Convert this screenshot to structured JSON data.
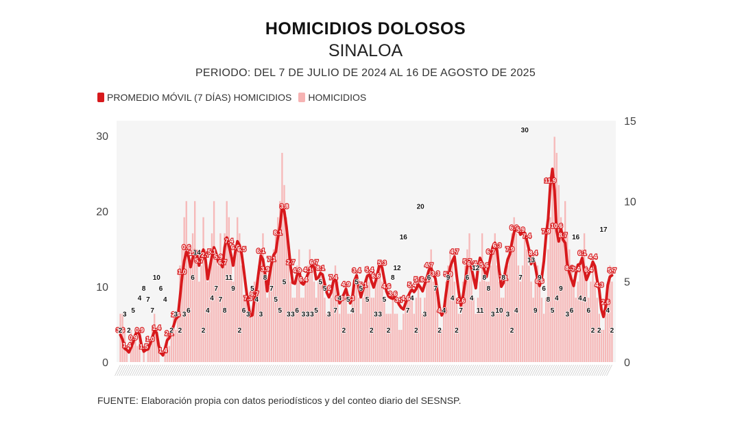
{
  "title": "HOMICIDIOS DOLOSOS",
  "subtitle": "SINALOA",
  "period": "PERIODO: DEL 7 DE JULIO DE 2024 AL 16 DE AGOSTO DE 2025",
  "legend": {
    "moving_avg": "PROMEDIO MÓVIL (7 DÍAS) HOMICIDIOS",
    "daily": "HOMICIDIOS"
  },
  "source": "FUENTE: Elaboración propia con datos periodísticos y del conteo diario del SESNSP.",
  "colors": {
    "moving_avg": "#d7191c",
    "daily": "#f6b3b3",
    "plot_bg": "#f5f5f5"
  },
  "chart_data": {
    "type": "line",
    "x_range": [
      "2024-07-07",
      "2025-08-16"
    ],
    "left_axis": {
      "ticks": [
        0,
        10,
        20,
        30
      ],
      "ylim": [
        0,
        32
      ]
    },
    "right_axis": {
      "ticks": [
        0,
        5,
        10,
        15
      ],
      "ylim": [
        0,
        15
      ]
    },
    "series": [
      {
        "name": "PROMEDIO MÓVIL (7 DÍAS) HOMICIDIOS",
        "axis": "left",
        "values": [
          3.6,
          3.0,
          1.8,
          1.6,
          1.3,
          1.9,
          2.6,
          3.6,
          4.1,
          3.6,
          2.1,
          1.4,
          1.6,
          1.7,
          2.4,
          3.3,
          4.1,
          3.9,
          2.2,
          1.2,
          0.9,
          1.8,
          2.9,
          3.2,
          4.1,
          4.8,
          5.7,
          6.0,
          8.6,
          11.3,
          13.4,
          14.6,
          14.0,
          12.6,
          13.8,
          14.8,
          14.2,
          12.8,
          14.2,
          14.9,
          13.6,
          11.0,
          12.5,
          14.0,
          15.2,
          14.4,
          13.3,
          13.2,
          12.6,
          15.2,
          16.5,
          15.4,
          14.2,
          12.8,
          14.6,
          16.0,
          15.5,
          14.3,
          12.2,
          9.9,
          7.8,
          6.1,
          6.2,
          8.4,
          9.8,
          12.0,
          14.1,
          13.6,
          11.7,
          9.4,
          11.4,
          13.0,
          14.2,
          14.6,
          16.5,
          18.0,
          20.6,
          20.0,
          18.0,
          15.4,
          12.6,
          10.5,
          10.4,
          11.5,
          12.2,
          10.5,
          10.3,
          10.8,
          11.6,
          12.2,
          12.8,
          12.6,
          11.0,
          11.2,
          11.8,
          11.6,
          10.4,
          9.2,
          8.6,
          9.2,
          10.6,
          11.4,
          9.6,
          7.8,
          8.4,
          9.0,
          9.7,
          8.6,
          7.8,
          8.6,
          10.8,
          11.5,
          9.9,
          8.6,
          9.6,
          10.5,
          11.4,
          11.6,
          10.7,
          9.9,
          10.8,
          12.0,
          13.1,
          12.5,
          11.0,
          9.4,
          8.7,
          8.5,
          8.4,
          8.6,
          8.2,
          7.6,
          7.2,
          7.0,
          7.8,
          8.6,
          9.2,
          9.6,
          9.3,
          9.7,
          10.3,
          9.9,
          9.4,
          10.3,
          11.2,
          12.2,
          12.5,
          11.6,
          11.1,
          9.2,
          7.1,
          6.2,
          6.8,
          9.1,
          11.0,
          12.6,
          13.4,
          14.0,
          11.5,
          9.3,
          7.5,
          8.8,
          10.6,
          12.7,
          13.5,
          12.4,
          11.1,
          9.8,
          12.4,
          13.8,
          13.1,
          12.2,
          11.3,
          12.6,
          14.0,
          15.3,
          15.8,
          14.8,
          12.1,
          10.0,
          10.5,
          12.3,
          13.6,
          14.3,
          15.9,
          17.2,
          18.0,
          17.6,
          16.9,
          17.4,
          17.1,
          16.1,
          14.9,
          13.0,
          13.8,
          12.6,
          11.0,
          10.1,
          11.2,
          13.4,
          16.7,
          19.0,
          23.4,
          25.6,
          22.7,
          17.4,
          16.0,
          17.8,
          16.2,
          15.8,
          13.0,
          11.8,
          10.9,
          10.1,
          11.7,
          12.9,
          13.0,
          13.8,
          12.1,
          10.9,
          11.6,
          12.4,
          13.3,
          12.7,
          10.9,
          9.6,
          7.0,
          6.0,
          7.3,
          10.2,
          11.3,
          11.5
        ]
      },
      {
        "name": "HOMICIDIOS",
        "axis": "right",
        "values": [
          3,
          3,
          2,
          1,
          0,
          2,
          1,
          2,
          1,
          2,
          0,
          1,
          0,
          1,
          1,
          2,
          3,
          2,
          1,
          0,
          0,
          1,
          2,
          1,
          2,
          3,
          2,
          3,
          6,
          7,
          9,
          10,
          7,
          6,
          8,
          10,
          7,
          5,
          6,
          9,
          7,
          5,
          6,
          8,
          10,
          7,
          6,
          8,
          6,
          8,
          10,
          9,
          7,
          5,
          7,
          9,
          8,
          6,
          4,
          4,
          3,
          3,
          3,
          5,
          4,
          6,
          7,
          8,
          5,
          4,
          5,
          6,
          7,
          8,
          9,
          10,
          13,
          11,
          9,
          7,
          5,
          4,
          4,
          6,
          7,
          4,
          4,
          5,
          6,
          7,
          6,
          5,
          4,
          5,
          6,
          5,
          4,
          3,
          3,
          4,
          5,
          6,
          5,
          3,
          4,
          4,
          5,
          3,
          3,
          4,
          5,
          5,
          4,
          3,
          4,
          5,
          6,
          5,
          4,
          4,
          5,
          6,
          6,
          5,
          4,
          3,
          3,
          3,
          4,
          3,
          3,
          2,
          2,
          3,
          4,
          4,
          5,
          4,
          3,
          4,
          5,
          4,
          3,
          4,
          5,
          6,
          7,
          5,
          5,
          4,
          2,
          2,
          3,
          5,
          6,
          7,
          6,
          5,
          4,
          3,
          3,
          5,
          6,
          7,
          8,
          6,
          4,
          3,
          4,
          5,
          8,
          6,
          5,
          5,
          6,
          7,
          8,
          6,
          5,
          4,
          4,
          5,
          6,
          7,
          8,
          9,
          8,
          6,
          5,
          6,
          8,
          7,
          6,
          5,
          4,
          5,
          6,
          5,
          4,
          3,
          4,
          7,
          9,
          12,
          14,
          13,
          11,
          9,
          8,
          10,
          8,
          7,
          6,
          5,
          4,
          5,
          6,
          7,
          8,
          6,
          4,
          5,
          6,
          5,
          4,
          3,
          2,
          2,
          3,
          5,
          6,
          5
        ]
      }
    ],
    "value_labels_moving_avg": [
      "3.6",
      "1.4",
      "0.9",
      "0.9",
      "1.5",
      "1.0",
      "1.4",
      "1.4",
      "2.1",
      "2.4",
      "1.0",
      "0.6",
      "1.3",
      "5.7",
      "2.7",
      "5.1",
      "5.9",
      "6.7",
      "7.4",
      "6.6",
      "6.5",
      "7.3",
      "6.7",
      "6.1",
      "3.9",
      "7.1",
      "8.1",
      "3.8",
      "2.7",
      "4.9",
      "6.4",
      "4.1",
      "6.7",
      "8.1",
      "9.6",
      "7.4",
      "6.3",
      "4.9",
      "4.3",
      "3.4",
      "5.1",
      "5.4",
      "6.6",
      "5.3",
      "4.6",
      "3.6",
      "3.7",
      "4.6",
      "5.4",
      "5.1",
      "6.1",
      "4.7",
      "3.3",
      "4.4",
      "5.9",
      "4.7",
      "2.6",
      "5.7",
      "6.3",
      "4.6",
      "5.6",
      "6.7",
      "6.3",
      "7.1",
      "7.9",
      "6.9",
      "5.9",
      "7.4",
      "8.4",
      "6.6",
      "7.9",
      "11.9",
      "10.6",
      "8.7",
      "8.3",
      "7.4",
      "6.1",
      "6.4",
      "4.4",
      "4.3",
      "2.6",
      "5.7"
    ],
    "value_labels_daily": [
      "2",
      "3",
      "2",
      "5",
      "4",
      "8",
      "7",
      "7",
      "10",
      "6",
      "4",
      "2",
      "3",
      "2",
      "3",
      "6",
      "6",
      "14",
      "2",
      "4",
      "4",
      "7",
      "7",
      "8",
      "11",
      "9",
      "2",
      "6",
      "3",
      "5",
      "4",
      "3",
      "8",
      "7",
      "5",
      "5",
      "5",
      "3",
      "3",
      "6",
      "3",
      "3",
      "3",
      "5",
      "5",
      "5",
      "3",
      "7",
      "4",
      "2",
      "5",
      "4",
      "5",
      "5",
      "5",
      "2",
      "3",
      "3",
      "5",
      "2",
      "8",
      "12",
      "16",
      "7",
      "4",
      "2",
      "20",
      "3",
      "6",
      "7",
      "2",
      "4",
      "9",
      "4",
      "2",
      "7",
      "6",
      "4",
      "12",
      "11",
      "8",
      "8",
      "3",
      "10",
      "8",
      "3",
      "2",
      "4",
      "7",
      "30",
      "13",
      "9",
      "9",
      "6",
      "8",
      "5",
      "4",
      "9",
      "3",
      "6",
      "16",
      "4",
      "4",
      "6",
      "2",
      "2",
      "17",
      "4",
      "2"
    ],
    "x_tick_labels": "illegible (rotated dates)"
  }
}
